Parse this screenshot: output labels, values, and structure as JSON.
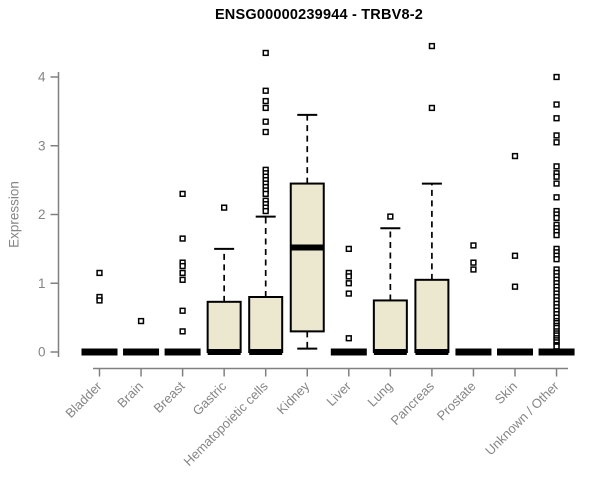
{
  "chart_data": {
    "type": "box",
    "title": "ENSG00000239944 - TRBV8-2",
    "ylabel": "Expression",
    "xlabel": "",
    "ylim": [
      0,
      4
    ],
    "yticks": [
      0,
      1,
      2,
      3,
      4
    ],
    "grid": false,
    "legend": false,
    "categories": [
      "Bladder",
      "Brain",
      "Breast",
      "Gastric",
      "Hematopoietic cells",
      "Kidney",
      "Liver",
      "Lung",
      "Pancreas",
      "Prostate",
      "Skin",
      "Unknown / Other"
    ],
    "series": [
      {
        "name": "Bladder",
        "q1": 0,
        "median": 0,
        "q3": 0,
        "whisker_low": 0,
        "whisker_high": 0,
        "outliers": [
          1.15,
          0.8,
          0.75
        ]
      },
      {
        "name": "Brain",
        "q1": 0,
        "median": 0,
        "q3": 0,
        "whisker_low": 0,
        "whisker_high": 0,
        "outliers": [
          0.45
        ]
      },
      {
        "name": "Breast",
        "q1": 0,
        "median": 0,
        "q3": 0,
        "whisker_low": 0,
        "whisker_high": 0,
        "outliers": [
          2.3,
          1.65,
          1.3,
          1.25,
          1.15,
          1.05,
          0.6,
          0.3
        ]
      },
      {
        "name": "Gastric",
        "q1": 0,
        "median": 0,
        "q3": 0.73,
        "whisker_low": 0,
        "whisker_high": 1.5,
        "outliers": [
          2.1
        ]
      },
      {
        "name": "Hematopoietic cells",
        "q1": 0,
        "median": 0,
        "q3": 0.8,
        "whisker_low": 0,
        "whisker_high": 1.97,
        "outliers": [
          4.35,
          3.8,
          3.65,
          3.55,
          3.35,
          3.2,
          2.65,
          2.6,
          2.55,
          2.5,
          2.45,
          2.4,
          2.35,
          2.3,
          2.2,
          2.15,
          2.1,
          2.05
        ]
      },
      {
        "name": "Kidney",
        "q1": 0.3,
        "median": 1.52,
        "q3": 2.45,
        "whisker_low": 0.05,
        "whisker_high": 3.45,
        "outliers": []
      },
      {
        "name": "Liver",
        "q1": 0,
        "median": 0,
        "q3": 0,
        "whisker_low": 0,
        "whisker_high": 0,
        "outliers": [
          1.5,
          1.15,
          1.1,
          1.0,
          0.85,
          0.2
        ]
      },
      {
        "name": "Lung",
        "q1": 0,
        "median": 0,
        "q3": 0.75,
        "whisker_low": 0,
        "whisker_high": 1.8,
        "outliers": [
          1.97
        ]
      },
      {
        "name": "Pancreas",
        "q1": 0,
        "median": 0,
        "q3": 1.05,
        "whisker_low": 0,
        "whisker_high": 2.45,
        "outliers": [
          4.45,
          3.55
        ]
      },
      {
        "name": "Prostate",
        "q1": 0,
        "median": 0,
        "q3": 0,
        "whisker_low": 0,
        "whisker_high": 0,
        "outliers": [
          1.55,
          1.3,
          1.2
        ]
      },
      {
        "name": "Skin",
        "q1": 0,
        "median": 0,
        "q3": 0,
        "whisker_low": 0,
        "whisker_high": 0,
        "outliers": [
          2.85,
          1.4,
          0.95
        ]
      },
      {
        "name": "Unknown / Other",
        "q1": 0,
        "median": 0,
        "q3": 0,
        "whisker_low": 0,
        "whisker_high": 0,
        "outliers": [
          4.0,
          3.6,
          3.4,
          3.15,
          3.05,
          2.7,
          2.6,
          2.55,
          2.45,
          2.25,
          2.05,
          2.0,
          1.95,
          1.85,
          1.8,
          1.75,
          1.7,
          1.5,
          1.45,
          1.4,
          1.35,
          1.2,
          1.15,
          1.1,
          1.05,
          1.0,
          0.95,
          0.9,
          0.85,
          0.8,
          0.75,
          0.7,
          0.65,
          0.6,
          0.55,
          0.5,
          0.45,
          0.42,
          0.38,
          0.35,
          0.3,
          0.27,
          0.24,
          0.2,
          0.17,
          0.14,
          0.1,
          0.08
        ]
      }
    ],
    "colors": {
      "box_fill": "#ECE7CF",
      "box_stroke": "#000000",
      "median": "#000000",
      "axis": "#808080",
      "tick_label": "#858585",
      "title": "#000000",
      "outlier_stroke": "#000000",
      "outlier_fill": "#FFFFFF"
    }
  }
}
